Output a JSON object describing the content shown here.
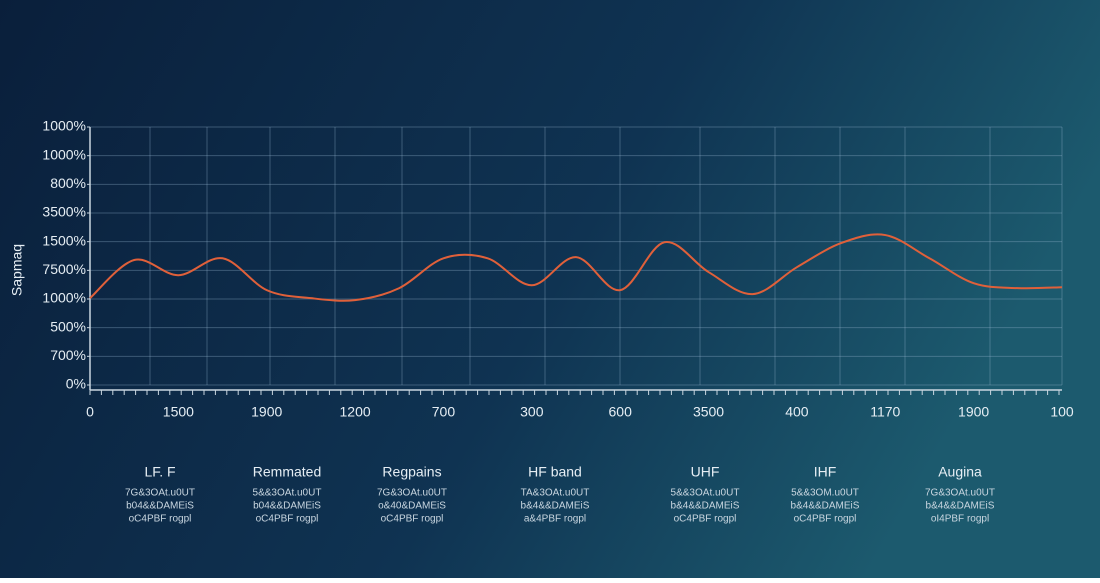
{
  "chart_data": {
    "type": "line",
    "y_axis_label": "Sapmaq",
    "y_labels": [
      "0%",
      "700%",
      "500%",
      "1000%",
      "7500%",
      "1500%",
      "3500%",
      "800%",
      "1000%",
      "1000%"
    ],
    "ylim": [
      0,
      9
    ],
    "categories": [
      "0",
      null,
      "1500",
      null,
      "1900",
      null,
      "1200",
      null,
      "700",
      null,
      "300",
      null,
      "600",
      null,
      "3500",
      null,
      "400",
      null,
      "1170",
      null,
      "1900",
      null,
      "100"
    ],
    "series": [
      {
        "color": "#e0603a",
        "values": [
          3.03,
          4.36,
          3.83,
          4.42,
          3.31,
          3.03,
          2.96,
          3.38,
          4.42,
          4.42,
          3.48,
          4.46,
          3.31,
          4.98,
          3.94,
          3.17,
          4.11,
          4.95,
          5.23,
          4.42,
          3.55,
          3.38,
          3.41
        ]
      }
    ],
    "grid": true,
    "bands": [
      {
        "title": "LF. F",
        "lines": [
          "7G&3OAt.u0UT",
          "b04&&DAMEiS",
          "oC4PBF rogpl"
        ]
      },
      {
        "title": "Remmated",
        "lines": [
          "5&&3OAt.u0UT",
          "b04&&DAMEiS",
          "oC4PBF rogpl"
        ]
      },
      {
        "title": "Regpains",
        "lines": [
          "7G&3OAt.u0UT",
          "o&40&DAMEiS",
          "oC4PBF rogpl"
        ]
      },
      {
        "title": "HF band",
        "lines": [
          "TA&3OAt.u0UT",
          "b&4&&DAMEiS",
          "a&4PBF rogpl"
        ]
      },
      {
        "title": "UHF",
        "lines": [
          "5&&3OAt.u0UT",
          "b&4&&DAMEiS",
          "oC4PBF rogpl"
        ]
      },
      {
        "title": "IHF",
        "lines": [
          "5&&3OM.u0UT",
          "b&4&&DAMEiS",
          "oC4PBF rogpl"
        ]
      },
      {
        "title": "Augina",
        "lines": [
          "7G&3OAt.u0UT",
          "b&4&&DAMEiS",
          "oI4PBF rogpl"
        ]
      }
    ]
  }
}
